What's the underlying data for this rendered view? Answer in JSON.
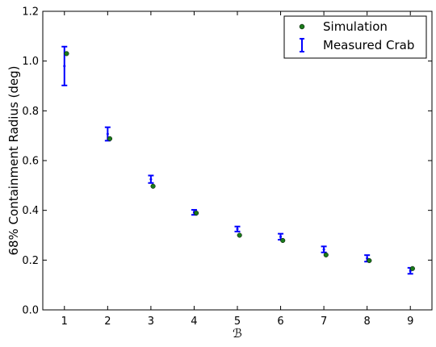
{
  "chart_data": {
    "type": "scatter",
    "title": "",
    "xlabel": "ℬ",
    "ylabel": "68% Containment Radius (deg)",
    "xlim": [
      0.5,
      9.5
    ],
    "ylim": [
      0.0,
      1.2
    ],
    "xticks": [
      "1",
      "2",
      "3",
      "4",
      "5",
      "6",
      "7",
      "8",
      "9"
    ],
    "yticks": [
      "0.0",
      "0.2",
      "0.4",
      "0.6",
      "0.8",
      "1.0",
      "1.2"
    ],
    "grid": false,
    "legend_position": "top-right",
    "series": [
      {
        "name": "Measured Crab",
        "kind": "errorbar",
        "color": "#0000ff",
        "x": [
          1,
          2,
          3,
          4,
          5,
          6,
          7,
          8,
          9
        ],
        "y": [
          0.98,
          0.707,
          0.525,
          0.392,
          0.325,
          0.294,
          0.243,
          0.207,
          0.157
        ],
        "yerr": [
          0.078,
          0.027,
          0.015,
          0.01,
          0.01,
          0.012,
          0.012,
          0.013,
          0.012
        ]
      },
      {
        "name": "Simulation",
        "kind": "points",
        "color": "#1a7a1a",
        "x": [
          1.05,
          2.05,
          3.05,
          4.05,
          5.05,
          6.05,
          7.05,
          8.05,
          9.05
        ],
        "y": [
          1.03,
          0.688,
          0.497,
          0.389,
          0.3,
          0.279,
          0.221,
          0.198,
          0.166
        ]
      }
    ]
  }
}
